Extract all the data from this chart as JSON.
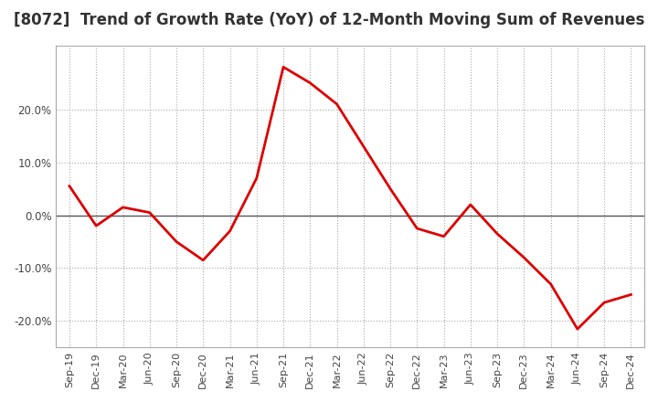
{
  "title": "[8072]  Trend of Growth Rate (YoY) of 12-Month Moving Sum of Revenues",
  "title_fontsize": 12,
  "title_color": "#333333",
  "line_color": "#dd0000",
  "line_width": 2.0,
  "background_color": "#ffffff",
  "plot_bg_color": "#ffffff",
  "grid_color": "#aaaaaa",
  "zero_line_color": "#555555",
  "x_labels": [
    "Sep-19",
    "Dec-19",
    "Mar-20",
    "Jun-20",
    "Sep-20",
    "Dec-20",
    "Mar-21",
    "Jun-21",
    "Sep-21",
    "Dec-21",
    "Mar-22",
    "Jun-22",
    "Sep-22",
    "Dec-22",
    "Mar-23",
    "Jun-23",
    "Sep-23",
    "Dec-23",
    "Mar-24",
    "Jun-24",
    "Sep-24",
    "Dec-24"
  ],
  "values": [
    5.5,
    -2.0,
    1.5,
    0.5,
    -5.0,
    -8.5,
    -3.0,
    7.0,
    28.0,
    25.0,
    21.0,
    13.0,
    5.0,
    -2.5,
    -4.0,
    2.0,
    -3.5,
    -8.0,
    -13.0,
    -21.5,
    -16.5,
    -15.0
  ],
  "ylim": [
    -25,
    32
  ],
  "yticks": [
    -20.0,
    -10.0,
    0.0,
    10.0,
    20.0
  ],
  "spine_color": "#aaaaaa"
}
